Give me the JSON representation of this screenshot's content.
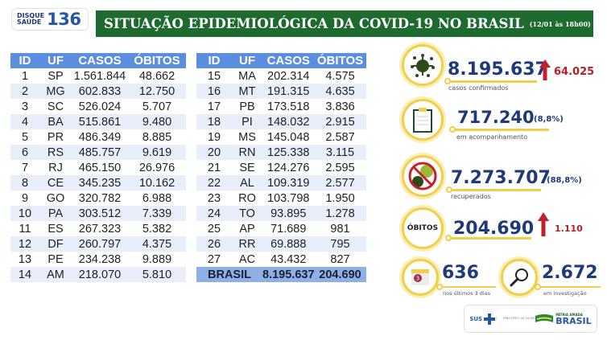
{
  "header": {
    "logo_line1": "DISQUE",
    "logo_line2": "SAÚDE",
    "logo_number": "136",
    "title": "SITUAÇÃO EPIDEMIOLÓGICA DA COVID-19 NO BRASIL",
    "date": "(12/01 às 18h00)"
  },
  "table": {
    "columns": [
      "ID",
      "UF",
      "CASOS",
      "ÓBITOS"
    ],
    "left_rows": [
      [
        "1",
        "SP",
        "1.561.844",
        "48.662"
      ],
      [
        "2",
        "MG",
        "602.833",
        "12.750"
      ],
      [
        "3",
        "SC",
        "526.024",
        "5.707"
      ],
      [
        "4",
        "BA",
        "515.861",
        "9.480"
      ],
      [
        "5",
        "PR",
        "486.349",
        "8.885"
      ],
      [
        "6",
        "RS",
        "485.757",
        "9.619"
      ],
      [
        "7",
        "RJ",
        "465.150",
        "26.976"
      ],
      [
        "8",
        "CE",
        "345.235",
        "10.162"
      ],
      [
        "9",
        "GO",
        "320.782",
        "6.988"
      ],
      [
        "10",
        "PA",
        "303.512",
        "7.339"
      ],
      [
        "11",
        "ES",
        "267.323",
        "5.382"
      ],
      [
        "12",
        "DF",
        "260.797",
        "4.375"
      ],
      [
        "13",
        "PE",
        "234.238",
        "9.889"
      ],
      [
        "14",
        "AM",
        "218.070",
        "5.810"
      ]
    ],
    "right_rows": [
      [
        "15",
        "MA",
        "202.314",
        "4.575"
      ],
      [
        "16",
        "MT",
        "191.315",
        "4.635"
      ],
      [
        "17",
        "PB",
        "173.518",
        "3.836"
      ],
      [
        "18",
        "PI",
        "148.032",
        "2.915"
      ],
      [
        "19",
        "MS",
        "145.048",
        "2.587"
      ],
      [
        "20",
        "RN",
        "125.338",
        "3.115"
      ],
      [
        "21",
        "SE",
        "124.276",
        "2.595"
      ],
      [
        "22",
        "AL",
        "109.319",
        "2.577"
      ],
      [
        "23",
        "RO",
        "103.798",
        "1.950"
      ],
      [
        "24",
        "TO",
        "93.895",
        "1.278"
      ],
      [
        "25",
        "AP",
        "71.689",
        "981"
      ],
      [
        "26",
        "RR",
        "69.888",
        "795"
      ],
      [
        "27",
        "AC",
        "43.432",
        "827"
      ]
    ],
    "total": {
      "label": "BRASIL",
      "casos": "8.195.637",
      "obitos": "204.690"
    }
  },
  "stats": {
    "confirmed": {
      "icon": "virus-icon",
      "value": "8.195.637",
      "delta": "64.025",
      "label": "casos confirmados"
    },
    "monitoring": {
      "icon": "clipboard-icon",
      "value": "717.240",
      "pct": "(8,8%)",
      "label": "em acompanhamento"
    },
    "recovered": {
      "icon": "no-virus-icon",
      "value": "7.273.707",
      "pct": "(88,8%)",
      "label": "recuperados"
    },
    "deaths": {
      "badge": "ÓBITOS",
      "value": "204.690",
      "delta": "1.110"
    },
    "last3days": {
      "icon": "calendar-icon",
      "calendar_num": "3",
      "value": "636",
      "label": "nos últimos 3 dias"
    },
    "investigation": {
      "icon": "magnifier-icon",
      "value": "2.672",
      "label": "em investigação"
    }
  },
  "footer": {
    "sus": "SUS",
    "ministry": "MINISTÉRIO DA SAÚDE",
    "patria": "PÁTRIA AMADA",
    "brasil": "BRASIL",
    "govfed": "GOVERNO FEDERAL"
  },
  "colors": {
    "title_green": "#1e6b30",
    "table_header_blue": "#5b8ee0",
    "row_alt": "#e8eefa",
    "total_row": "#8fb0e6",
    "number_navy": "#1f3a78",
    "delta_red": "#b3202a",
    "ring_yellow": "#f2cf4a"
  }
}
